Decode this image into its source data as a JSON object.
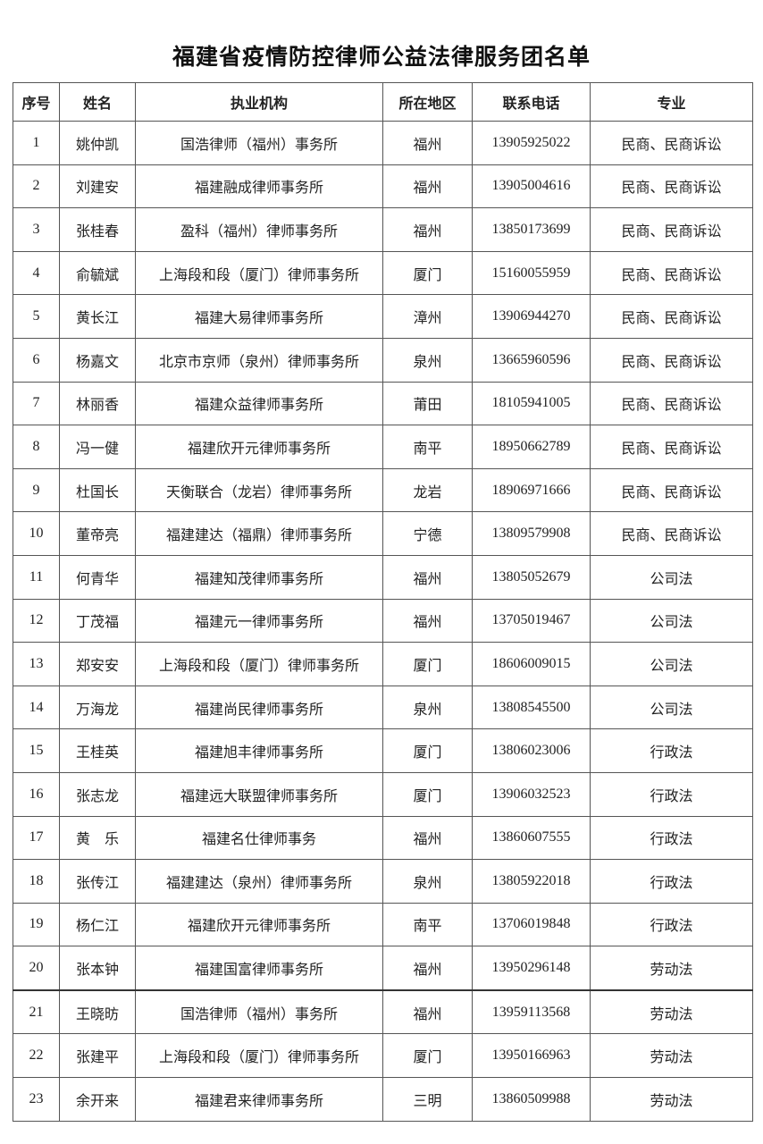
{
  "title": "福建省疫情防控律师公益法律服务团名单",
  "table": {
    "headers": [
      "序号",
      "姓名",
      "执业机构",
      "所在地区",
      "联系电话",
      "专业"
    ],
    "rows": [
      [
        "1",
        "姚仲凯",
        "国浩律师（福州）事务所",
        "福州",
        "13905925022",
        "民商、民商诉讼"
      ],
      [
        "2",
        "刘建安",
        "福建融成律师事务所",
        "福州",
        "13905004616",
        "民商、民商诉讼"
      ],
      [
        "3",
        "张桂春",
        "盈科（福州）律师事务所",
        "福州",
        "13850173699",
        "民商、民商诉讼"
      ],
      [
        "4",
        "俞毓斌",
        "上海段和段（厦门）律师事务所",
        "厦门",
        "15160055959",
        "民商、民商诉讼"
      ],
      [
        "5",
        "黄长江",
        "福建大易律师事务所",
        "漳州",
        "13906944270",
        "民商、民商诉讼"
      ],
      [
        "6",
        "杨嘉文",
        "北京市京师（泉州）律师事务所",
        "泉州",
        "13665960596",
        "民商、民商诉讼"
      ],
      [
        "7",
        "林丽香",
        "福建众益律师事务所",
        "莆田",
        "18105941005",
        "民商、民商诉讼"
      ],
      [
        "8",
        "冯一健",
        "福建欣开元律师事务所",
        "南平",
        "18950662789",
        "民商、民商诉讼"
      ],
      [
        "9",
        "杜国长",
        "天衡联合（龙岩）律师事务所",
        "龙岩",
        "18906971666",
        "民商、民商诉讼"
      ],
      [
        "10",
        "董帝亮",
        "福建建达（福鼎）律师事务所",
        "宁德",
        "13809579908",
        "民商、民商诉讼"
      ],
      [
        "11",
        "何青华",
        "福建知茂律师事务所",
        "福州",
        "13805052679",
        "公司法"
      ],
      [
        "12",
        "丁茂福",
        "福建元一律师事务所",
        "福州",
        "13705019467",
        "公司法"
      ],
      [
        "13",
        "郑安安",
        "上海段和段（厦门）律师事务所",
        "厦门",
        "18606009015",
        "公司法"
      ],
      [
        "14",
        "万海龙",
        "福建尚民律师事务所",
        "泉州",
        "13808545500",
        "公司法"
      ],
      [
        "15",
        "王桂英",
        "福建旭丰律师事务所",
        "厦门",
        "13806023006",
        "行政法"
      ],
      [
        "16",
        "张志龙",
        "福建远大联盟律师事务所",
        "厦门",
        "13906032523",
        "行政法"
      ],
      [
        "17",
        "黄　乐",
        "福建名仕律师事务",
        "福州",
        "13860607555",
        "行政法"
      ],
      [
        "18",
        "张传江",
        "福建建达（泉州）律师事务所",
        "泉州",
        "13805922018",
        "行政法"
      ],
      [
        "19",
        "杨仁江",
        "福建欣开元律师事务所",
        "南平",
        "13706019848",
        "行政法"
      ],
      [
        "20",
        "张本钟",
        "福建国富律师事务所",
        "福州",
        "13950296148",
        "劳动法"
      ],
      [
        "21",
        "王晓昉",
        "国浩律师（福州）事务所",
        "福州",
        "13959113568",
        "劳动法"
      ],
      [
        "22",
        "张建平",
        "上海段和段（厦门）律师事务所",
        "厦门",
        "13950166963",
        "劳动法"
      ],
      [
        "23",
        "余开来",
        "福建君来律师事务所",
        "三明",
        "13860509988",
        "劳动法"
      ]
    ]
  }
}
